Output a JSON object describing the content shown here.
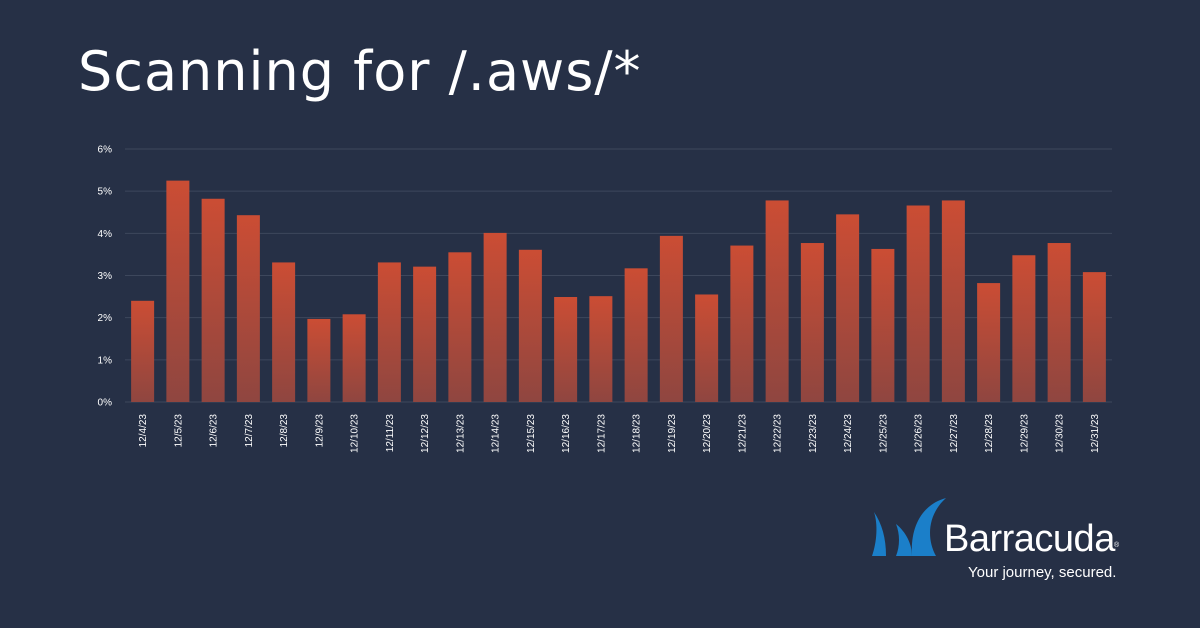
{
  "header": {
    "title": "Scanning for /.aws/*"
  },
  "brand": {
    "name": "Barracuda",
    "registered": "®",
    "tagline": "Your journey, secured."
  },
  "colors": {
    "background": "#263046",
    "bar_top": "#cb4d34",
    "bar_bottom": "#8f4640",
    "grid": "#3d475c",
    "tick_text": "#ffffff",
    "logo_blue": "#1b7fc9"
  },
  "chart_data": {
    "type": "bar",
    "title": "",
    "xlabel": "",
    "ylabel": "",
    "ylim": [
      0,
      6
    ],
    "yticks": [
      "0%",
      "1%",
      "2%",
      "3%",
      "4%",
      "5%",
      "6%"
    ],
    "grid": true,
    "categories": [
      "12/4/23",
      "12/5/23",
      "12/6/23",
      "12/7/23",
      "12/8/23",
      "12/9/23",
      "12/10/23",
      "12/11/23",
      "12/12/23",
      "12/13/23",
      "12/14/23",
      "12/15/23",
      "12/16/23",
      "12/17/23",
      "12/18/23",
      "12/19/23",
      "12/20/23",
      "12/21/23",
      "12/22/23",
      "12/23/23",
      "12/24/23",
      "12/25/23",
      "12/26/23",
      "12/27/23",
      "12/28/23",
      "12/29/23",
      "12/30/23",
      "12/31/23"
    ],
    "values": [
      2.4,
      5.25,
      4.82,
      4.43,
      3.31,
      1.97,
      2.08,
      3.31,
      3.21,
      3.55,
      4.01,
      3.61,
      2.49,
      2.51,
      3.17,
      3.94,
      2.55,
      3.71,
      4.78,
      3.77,
      4.45,
      3.63,
      4.66,
      4.78,
      2.82,
      3.48,
      3.77,
      3.08
    ]
  }
}
